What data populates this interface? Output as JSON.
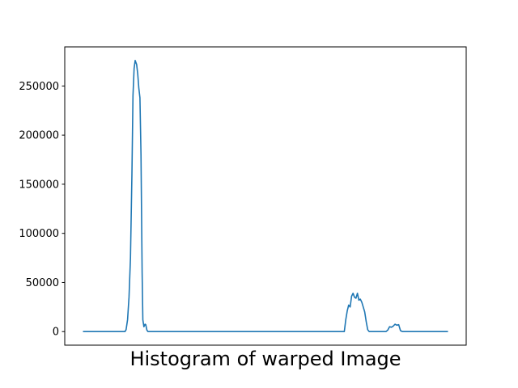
{
  "chart_data": {
    "type": "line",
    "title": "",
    "xlabel": "Histogram of warped Image",
    "ylabel": "",
    "xlim": [
      -0.05,
      1.05
    ],
    "ylim": [
      -13800,
      289800
    ],
    "x_ticks_shown": false,
    "y_ticks": [
      0,
      50000,
      100000,
      150000,
      200000,
      250000
    ],
    "y_tick_labels": [
      "0",
      "50000",
      "100000",
      "150000",
      "200000",
      "250000"
    ],
    "grid": false,
    "series": [
      {
        "color": "#1f77b4",
        "x": [
          0.0,
          0.06,
          0.115,
          0.118,
          0.122,
          0.126,
          0.13,
          0.134,
          0.137,
          0.14,
          0.143,
          0.147,
          0.15,
          0.153,
          0.156,
          0.159,
          0.162,
          0.164,
          0.167,
          0.17,
          0.172,
          0.175,
          0.178,
          0.181,
          0.184,
          0.188,
          0.192,
          0.2,
          0.3,
          0.4,
          0.5,
          0.6,
          0.65,
          0.7,
          0.716,
          0.72,
          0.724,
          0.728,
          0.732,
          0.736,
          0.74,
          0.744,
          0.748,
          0.752,
          0.756,
          0.76,
          0.764,
          0.768,
          0.772,
          0.776,
          0.78,
          0.784,
          0.788,
          0.792,
          0.796,
          0.8,
          0.82,
          0.83,
          0.835,
          0.84,
          0.845,
          0.85,
          0.855,
          0.86,
          0.865,
          0.87,
          0.875,
          0.88,
          0.885,
          0.9,
          0.95,
          1.0
        ],
        "values": [
          0,
          0,
          0,
          2000,
          12000,
          35000,
          75000,
          160000,
          240000,
          268000,
          276000,
          272000,
          262000,
          248000,
          238000,
          180000,
          60000,
          12000,
          5000,
          7500,
          7000,
          1500,
          0,
          0,
          0,
          0,
          0,
          0,
          0,
          0,
          0,
          0,
          0,
          0,
          0,
          12000,
          21000,
          27000,
          25000,
          36000,
          39000,
          35000,
          34000,
          39000,
          32000,
          33000,
          30000,
          25000,
          20000,
          10000,
          2000,
          0,
          0,
          0,
          0,
          0,
          0,
          0,
          1500,
          5000,
          4500,
          5500,
          7500,
          6500,
          7000,
          1000,
          0,
          0,
          0,
          0,
          0,
          0
        ]
      }
    ]
  }
}
